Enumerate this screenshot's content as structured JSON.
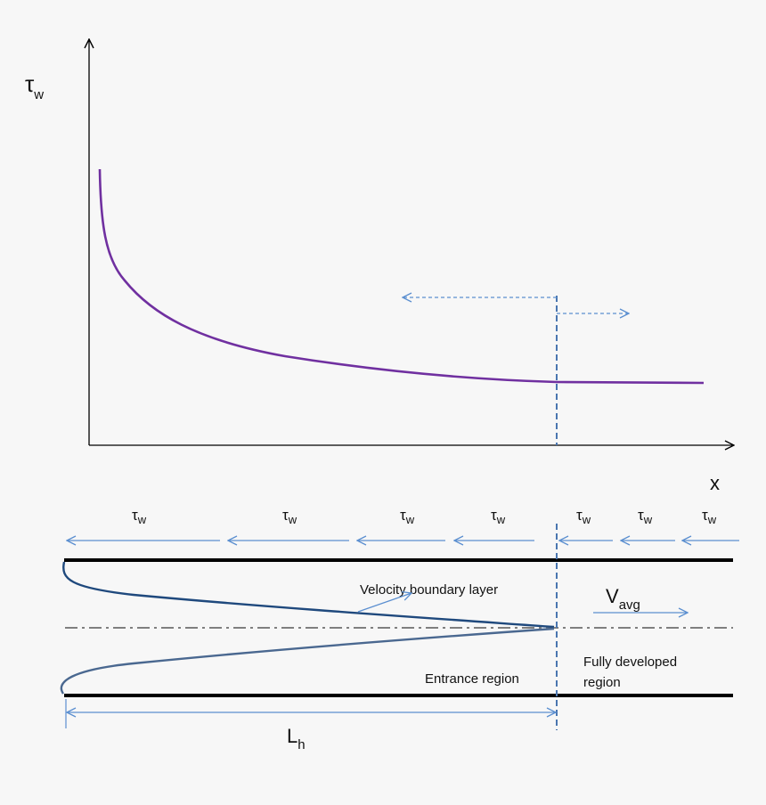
{
  "graph": {
    "y_axis_symbol": "τ",
    "y_axis_subscript": "w",
    "x_axis_label": "x"
  },
  "pipe": {
    "tau_symbol": "τ",
    "tau_subscript": "w",
    "velocity_boundary_layer": "Velocity boundary layer",
    "v_avg_symbol": "V",
    "v_avg_subscript": "avg",
    "entrance_region": "Entrance region",
    "fully_developed_line1": "Fully developed",
    "fully_developed_line2": "region",
    "length_symbol": "L",
    "length_subscript": "h"
  },
  "colors": {
    "curve": "#7030a0",
    "arrow_blue": "#5b8fd0",
    "dashed_divider": "#4a76b0",
    "profile": "#1f497d",
    "centerline": "#7f7f7f",
    "walls": "#000000"
  }
}
